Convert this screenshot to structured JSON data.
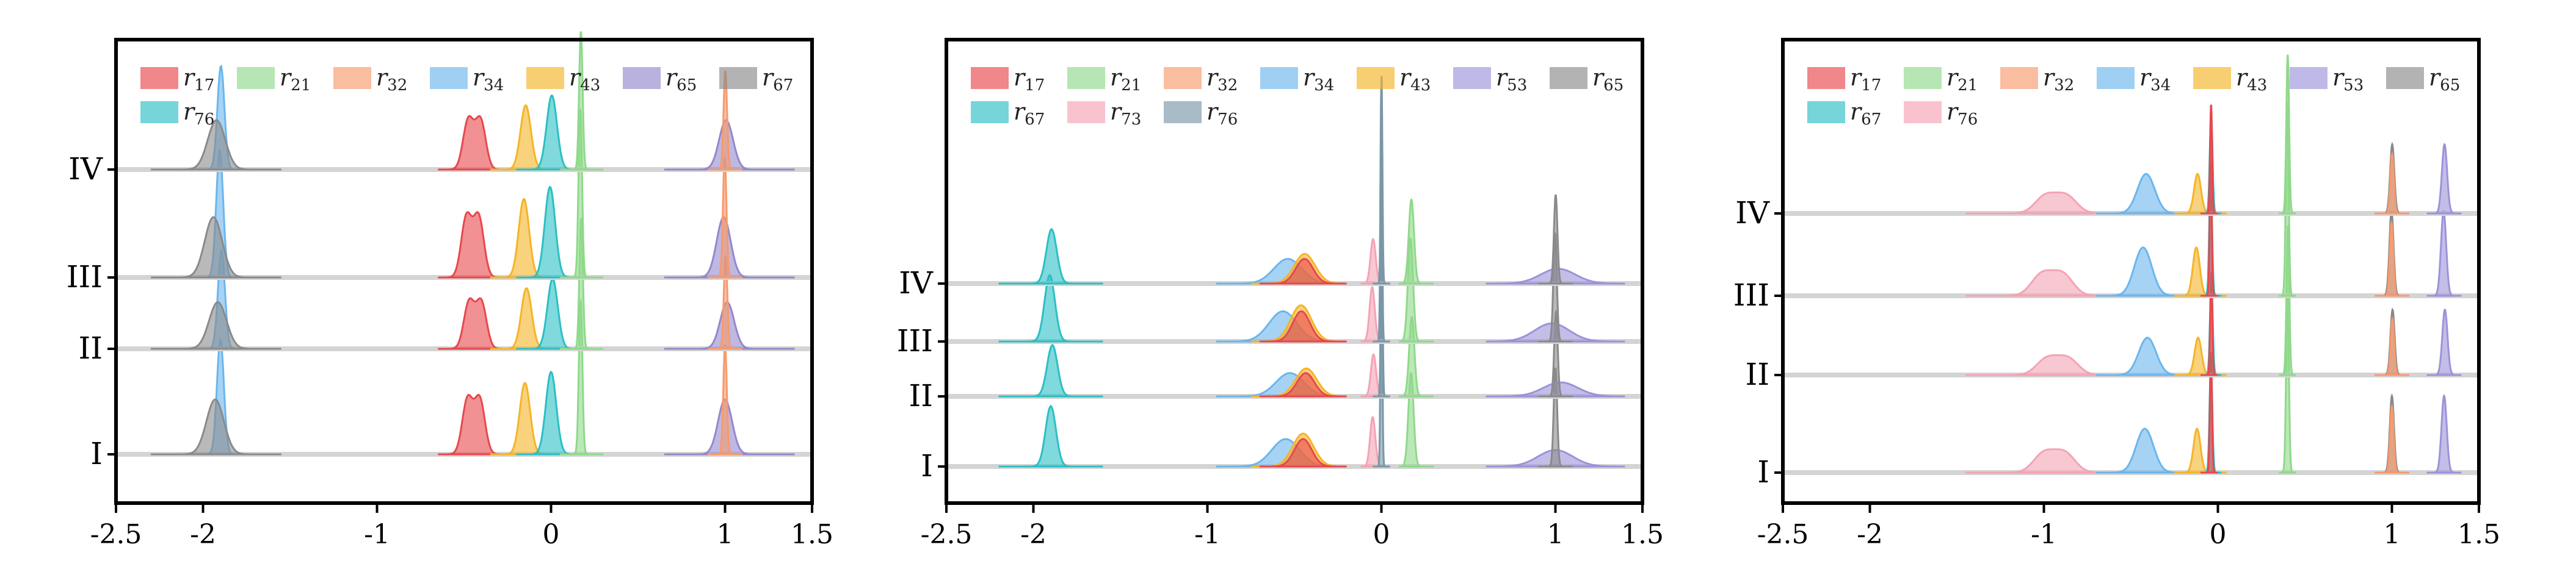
{
  "colors": {
    "r17": "#e8474c",
    "r21": "#8fd98a",
    "r32": "#f79a6c",
    "r34": "#6bb6ec",
    "r43": "#f5b427",
    "r53": "#9b93d9",
    "r65": "#9488cc",
    "r67_gray": "#8a8a8a",
    "r67_teal": "#2bbfc4",
    "r73": "#f4a3b4",
    "r76_teal": "#2bbfc4",
    "r76_slate": "#7a97a8",
    "r76_pink": "#f4a3b4",
    "r65_gray": "#8a8a8a",
    "baseline": "#d4d4d4"
  },
  "chart_data": [
    {
      "type": "area",
      "x_ticks": [
        "-2.5",
        "-2",
        "-1",
        "0",
        "1",
        "1.5"
      ],
      "x_tick_values": [
        -2.5,
        -2,
        -1,
        0,
        1,
        1.5
      ],
      "xlim": [
        -2.5,
        1.5
      ],
      "rows": [
        "I",
        "II",
        "III",
        "IV"
      ],
      "legend": [
        {
          "key": "r17",
          "base": "r",
          "sub": "17",
          "color": "#e8474c"
        },
        {
          "key": "r21",
          "base": "r",
          "sub": "21",
          "color": "#8fd98a"
        },
        {
          "key": "r32",
          "base": "r",
          "sub": "32",
          "color": "#f79a6c"
        },
        {
          "key": "r34",
          "base": "r",
          "sub": "34",
          "color": "#6bb6ec"
        },
        {
          "key": "r43",
          "base": "r",
          "sub": "43",
          "color": "#f5b427"
        },
        {
          "key": "r65",
          "base": "r",
          "sub": "65",
          "color": "#9488cc"
        },
        {
          "key": "r67",
          "base": "r",
          "sub": "67",
          "color": "#8a8a8a"
        },
        {
          "key": "r76",
          "base": "r",
          "sub": "76",
          "color": "#2bbfc4"
        }
      ],
      "series": [
        {
          "key": "r34",
          "color": "#6bb6ec",
          "peaks": [
            [
              -1.9,
              0.02,
              2.1
            ]
          ],
          "range": [
            -2.2,
            -1.6
          ]
        },
        {
          "key": "r67",
          "color": "#8a8a8a",
          "peaks": [
            [
              -1.93,
              0.05,
              1.0
            ]
          ],
          "range": [
            -2.3,
            -1.55
          ]
        },
        {
          "key": "r17",
          "color": "#e8474c",
          "peaks": [
            [
              -0.48,
              0.03,
              1.0
            ],
            [
              -0.41,
              0.03,
              1.0
            ]
          ],
          "range": [
            -0.65,
            -0.25
          ]
        },
        {
          "key": "r43",
          "color": "#f5b427",
          "peaks": [
            [
              -0.15,
              0.03,
              1.3
            ]
          ],
          "range": [
            -0.35,
            0.0
          ]
        },
        {
          "key": "r76",
          "color": "#2bbfc4",
          "peaks": [
            [
              0.0,
              0.03,
              1.5
            ]
          ],
          "range": [
            -0.2,
            0.2
          ]
        },
        {
          "key": "r21",
          "color": "#8fd98a",
          "peaks": [
            [
              0.17,
              0.01,
              2.8
            ]
          ],
          "range": [
            0.05,
            0.3
          ]
        },
        {
          "key": "r65",
          "color": "#9488cc",
          "peaks": [
            [
              1.0,
              0.04,
              1.0
            ]
          ],
          "range": [
            0.65,
            1.4
          ]
        },
        {
          "key": "r32",
          "color": "#f79a6c",
          "peaks": [
            [
              1.0,
              0.01,
              2.0
            ]
          ],
          "range": [
            0.9,
            1.1
          ]
        }
      ]
    },
    {
      "type": "area",
      "x_ticks": [
        "-2.5",
        "-2",
        "-1",
        "0",
        "1",
        "1.5"
      ],
      "x_tick_values": [
        -2.5,
        -2,
        -1,
        0,
        1,
        1.5
      ],
      "xlim": [
        -2.5,
        1.5
      ],
      "rows": [
        "I",
        "II",
        "III",
        "IV"
      ],
      "legend": [
        {
          "key": "r17",
          "base": "r",
          "sub": "17",
          "color": "#e8474c"
        },
        {
          "key": "r21",
          "base": "r",
          "sub": "21",
          "color": "#8fd98a"
        },
        {
          "key": "r32",
          "base": "r",
          "sub": "32",
          "color": "#f79a6c"
        },
        {
          "key": "r34",
          "base": "r",
          "sub": "34",
          "color": "#6bb6ec"
        },
        {
          "key": "r43",
          "base": "r",
          "sub": "43",
          "color": "#f5b427"
        },
        {
          "key": "r53",
          "base": "r",
          "sub": "53",
          "color": "#9b93d9"
        },
        {
          "key": "r65",
          "base": "r",
          "sub": "65",
          "color": "#8a8a8a"
        },
        {
          "key": "r67",
          "base": "r",
          "sub": "67",
          "color": "#2bbfc4"
        },
        {
          "key": "r73",
          "base": "r",
          "sub": "73",
          "color": "#f4a3b4"
        },
        {
          "key": "r76",
          "base": "r",
          "sub": "76",
          "color": "#7a97a8"
        }
      ],
      "series": [
        {
          "key": "r67",
          "color": "#2bbfc4",
          "peaks": [
            [
              -1.9,
              0.03,
              1.1
            ]
          ],
          "range": [
            -2.2,
            -1.6
          ]
        },
        {
          "key": "r34",
          "color": "#6bb6ec",
          "peaks": [
            [
              -0.55,
              0.08,
              0.5
            ]
          ],
          "range": [
            -0.95,
            -0.2
          ]
        },
        {
          "key": "r43",
          "color": "#f5b427",
          "peaks": [
            [
              -0.45,
              0.06,
              0.6
            ]
          ],
          "range": [
            -0.75,
            -0.2
          ]
        },
        {
          "key": "r17",
          "color": "#e8474c",
          "peaks": [
            [
              -0.45,
              0.05,
              0.5
            ]
          ],
          "range": [
            -0.7,
            -0.2
          ]
        },
        {
          "key": "r73",
          "color": "#f4a3b4",
          "peaks": [
            [
              -0.05,
              0.015,
              0.9
            ]
          ],
          "range": [
            -0.12,
            0.02
          ]
        },
        {
          "key": "r76",
          "color": "#7a97a8",
          "peaks": [
            [
              0.0,
              0.005,
              4.2
            ]
          ],
          "range": [
            -0.05,
            0.05
          ]
        },
        {
          "key": "r21",
          "color": "#8fd98a",
          "peaks": [
            [
              0.17,
              0.015,
              1.7
            ]
          ],
          "range": [
            0.1,
            0.3
          ]
        },
        {
          "key": "r53",
          "color": "#9b93d9",
          "peaks": [
            [
              1.0,
              0.1,
              0.3
            ]
          ],
          "range": [
            0.6,
            1.4
          ]
        },
        {
          "key": "r65",
          "color": "#8a8a8a",
          "peaks": [
            [
              1.0,
              0.01,
              1.8
            ]
          ],
          "range": [
            0.9,
            1.1
          ]
        }
      ]
    },
    {
      "type": "area",
      "x_ticks": [
        "-2.5",
        "-2",
        "-1",
        "0",
        "1",
        "1.5"
      ],
      "x_tick_values": [
        -2.5,
        -2,
        -1,
        0,
        1,
        1.5
      ],
      "xlim": [
        -2.5,
        1.5
      ],
      "rows": [
        "I",
        "II",
        "III",
        "IV"
      ],
      "legend": [
        {
          "key": "r17",
          "base": "r",
          "sub": "17",
          "color": "#e8474c"
        },
        {
          "key": "r21",
          "base": "r",
          "sub": "21",
          "color": "#8fd98a"
        },
        {
          "key": "r32",
          "base": "r",
          "sub": "32",
          "color": "#f79a6c"
        },
        {
          "key": "r34",
          "base": "r",
          "sub": "34",
          "color": "#6bb6ec"
        },
        {
          "key": "r43",
          "base": "r",
          "sub": "43",
          "color": "#f5b427"
        },
        {
          "key": "r53",
          "base": "r",
          "sub": "53",
          "color": "#9b93d9"
        },
        {
          "key": "r65",
          "base": "r",
          "sub": "65",
          "color": "#8a8a8a"
        },
        {
          "key": "r67",
          "base": "r",
          "sub": "67",
          "color": "#2bbfc4"
        },
        {
          "key": "r76",
          "base": "r",
          "sub": "76",
          "color": "#f4a3b4"
        }
      ],
      "series": [
        {
          "key": "r76",
          "color": "#f4a3b4",
          "peaks": [
            [
              -1.0,
              0.06,
              0.35
            ],
            [
              -0.88,
              0.06,
              0.35
            ]
          ],
          "range": [
            -1.45,
            -0.6
          ]
        },
        {
          "key": "r34",
          "color": "#6bb6ec",
          "peaks": [
            [
              -0.42,
              0.05,
              0.8
            ]
          ],
          "range": [
            -0.7,
            -0.2
          ]
        },
        {
          "key": "r43",
          "color": "#f5b427",
          "peaks": [
            [
              -0.12,
              0.02,
              0.8
            ]
          ],
          "range": [
            -0.25,
            0.05
          ]
        },
        {
          "key": "r67",
          "color": "#2bbfc4",
          "peaks": [
            [
              -0.04,
              0.008,
              2.0
            ]
          ],
          "range": [
            -0.1,
            0.02
          ]
        },
        {
          "key": "r17",
          "color": "#e8474c",
          "peaks": [
            [
              -0.04,
              0.006,
              2.2
            ]
          ],
          "range": [
            -0.1,
            0.0
          ]
        },
        {
          "key": "r21",
          "color": "#8fd98a",
          "peaks": [
            [
              0.4,
              0.008,
              3.2
            ]
          ],
          "range": [
            0.35,
            0.45
          ]
        },
        {
          "key": "r65",
          "color": "#8a8a8a",
          "peaks": [
            [
              1.0,
              0.012,
              1.4
            ]
          ],
          "range": [
            0.9,
            1.1
          ]
        },
        {
          "key": "r32",
          "color": "#f79a6c",
          "peaks": [
            [
              1.0,
              0.01,
              1.2
            ]
          ],
          "range": [
            0.9,
            1.1
          ]
        },
        {
          "key": "r53",
          "color": "#9b93d9",
          "peaks": [
            [
              1.3,
              0.015,
              1.4
            ]
          ],
          "range": [
            1.2,
            1.4
          ]
        }
      ]
    }
  ]
}
